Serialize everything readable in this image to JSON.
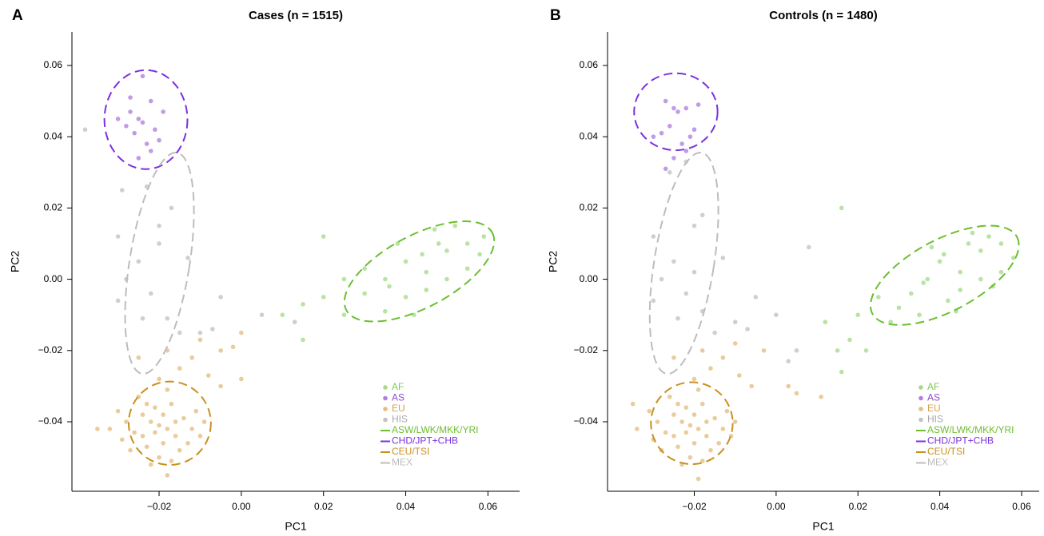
{
  "chart_data": [
    {
      "type": "scatter",
      "panel_label": "A",
      "title": "Cases (n = 1515)",
      "x_label": "PC1",
      "y_label": "PC2",
      "xlim": [
        -0.0412,
        0.0677
      ],
      "ylim": [
        -0.0595,
        0.0694
      ],
      "xticks": [
        {
          "value": -0.02,
          "label": "−0.02"
        },
        {
          "value": 0,
          "label": "0.00"
        },
        0.02,
        0.04,
        0.06
      ],
      "yticks": [
        {
          "value": -0.04,
          "label": "−0.04"
        },
        {
          "value": -0.02,
          "label": "−0.02"
        },
        {
          "value": 0,
          "label": "0.00"
        },
        0.02,
        0.04,
        0.06
      ],
      "legend": "lower right",
      "series": [
        {
          "name": "AF",
          "color": "#7dcc55",
          "x": [
            0.02,
            0.01,
            0.015,
            0.02,
            0.025,
            0.03,
            0.035,
            0.04,
            0.045,
            0.05,
            0.055,
            0.058,
            0.047,
            0.052,
            0.04,
            0.035,
            0.045,
            0.03,
            0.038,
            0.042,
            0.05,
            0.055,
            0.025,
            0.015,
            0.048,
            0.036,
            0.044,
            0.059
          ],
          "y": [
            0.012,
            -0.01,
            -0.007,
            -0.005,
            -0.01,
            -0.004,
            0.0,
            0.005,
            0.002,
            0.008,
            0.01,
            0.007,
            0.014,
            0.015,
            -0.005,
            -0.009,
            -0.003,
            0.003,
            0.01,
            -0.01,
            0.0,
            0.003,
            0.0,
            -0.017,
            0.01,
            -0.002,
            0.007,
            0.012
          ]
        },
        {
          "name": "AS",
          "color": "#8e48cf",
          "x": [
            -0.025,
            -0.027,
            -0.022,
            -0.024,
            -0.021,
            -0.026,
            -0.028,
            -0.023,
            -0.02,
            -0.025,
            -0.03,
            -0.019,
            -0.027,
            -0.022,
            -0.024
          ],
          "y": [
            0.045,
            0.047,
            0.05,
            0.057,
            0.042,
            0.041,
            0.043,
            0.038,
            0.039,
            0.034,
            0.045,
            0.047,
            0.051,
            0.036,
            0.044
          ]
        },
        {
          "name": "EU",
          "color": "#d9a14a",
          "x": [
            -0.02,
            -0.022,
            -0.018,
            -0.024,
            -0.016,
            -0.021,
            -0.019,
            -0.026,
            -0.014,
            -0.023,
            -0.017,
            -0.028,
            -0.012,
            -0.02,
            -0.025,
            -0.015,
            -0.029,
            -0.011,
            -0.022,
            -0.018,
            -0.03,
            -0.013,
            -0.024,
            -0.016,
            -0.021,
            -0.019,
            -0.027,
            -0.01,
            -0.023,
            -0.017,
            -0.032,
            -0.009,
            -0.02,
            -0.015,
            -0.012,
            -0.008,
            -0.005,
            -0.002,
            0.0,
            -0.005,
            -0.025,
            -0.018,
            -0.01,
            -0.035,
            -0.018,
            0.0
          ],
          "y": [
            -0.041,
            -0.04,
            -0.042,
            -0.038,
            -0.044,
            -0.036,
            -0.046,
            -0.043,
            -0.039,
            -0.047,
            -0.035,
            -0.04,
            -0.042,
            -0.05,
            -0.033,
            -0.048,
            -0.045,
            -0.037,
            -0.052,
            -0.031,
            -0.037,
            -0.046,
            -0.044,
            -0.04,
            -0.043,
            -0.038,
            -0.048,
            -0.044,
            -0.035,
            -0.051,
            -0.042,
            -0.04,
            -0.028,
            -0.025,
            -0.022,
            -0.027,
            -0.03,
            -0.019,
            -0.015,
            -0.02,
            -0.022,
            -0.02,
            -0.017,
            -0.042,
            -0.055,
            -0.028
          ]
        },
        {
          "name": "HIS",
          "color": "#a8a8a8",
          "x": [
            -0.038,
            -0.029,
            -0.023,
            -0.017,
            -0.03,
            -0.025,
            -0.02,
            -0.028,
            -0.022,
            -0.03,
            -0.024,
            -0.018,
            -0.013,
            -0.015,
            -0.01,
            -0.005,
            0.005,
            -0.007,
            0.013,
            -0.02
          ],
          "y": [
            0.042,
            0.025,
            0.026,
            0.02,
            0.012,
            0.005,
            0.01,
            0.0,
            -0.004,
            -0.006,
            -0.011,
            -0.011,
            0.006,
            -0.015,
            -0.015,
            -0.005,
            -0.01,
            -0.014,
            -0.012,
            0.015
          ]
        }
      ],
      "ellipses": [
        {
          "name": "ASW/LWK/MKK/YRI",
          "color": "#6bbf2f",
          "cx": 0.0433,
          "cy": 0.0022,
          "rx": 0.0201,
          "ry": 0.0101,
          "angle": -28
        },
        {
          "name": "CHD/JPT+CHB",
          "color": "#7b30df",
          "cx": -0.0232,
          "cy": 0.0448,
          "rx": 0.0101,
          "ry": 0.0139,
          "angle": 0
        },
        {
          "name": "CEU/TSI",
          "color": "#c9901f",
          "cx": -0.0174,
          "cy": -0.0404,
          "rx": 0.01,
          "ry": 0.0117,
          "angle": 0
        },
        {
          "name": "MEX",
          "color": "#bdbdbd",
          "cx": -0.0199,
          "cy": 0.0045,
          "rx": 0.0073,
          "ry": 0.0314,
          "angle": 9
        }
      ]
    },
    {
      "type": "scatter",
      "panel_label": "B",
      "title": "Controls (n = 1480)",
      "x_label": "PC1",
      "y_label": "PC2",
      "xlim": [
        -0.0412,
        0.0643
      ],
      "ylim": [
        -0.0595,
        0.0694
      ],
      "xticks": [
        {
          "value": -0.02,
          "label": "−0.02"
        },
        {
          "value": 0,
          "label": "0.00"
        },
        0.02,
        0.04,
        0.06
      ],
      "yticks": [
        {
          "value": -0.04,
          "label": "−0.04"
        },
        {
          "value": -0.02,
          "label": "−0.02"
        },
        {
          "value": 0,
          "label": "0.00"
        },
        0.02,
        0.04,
        0.06
      ],
      "legend": "lower right",
      "series": [
        {
          "name": "AF",
          "color": "#7dcc55",
          "x": [
            0.016,
            0.012,
            0.015,
            0.02,
            0.022,
            0.025,
            0.03,
            0.033,
            0.037,
            0.04,
            0.045,
            0.05,
            0.055,
            0.058,
            0.048,
            0.052,
            0.042,
            0.035,
            0.045,
            0.028,
            0.038,
            0.044,
            0.05,
            0.055,
            0.016,
            0.018,
            0.047,
            0.036,
            0.041,
            0.053
          ],
          "y": [
            0.02,
            -0.012,
            -0.02,
            -0.01,
            -0.02,
            -0.005,
            -0.008,
            -0.004,
            0.0,
            0.005,
            0.002,
            0.008,
            0.01,
            0.006,
            0.013,
            0.012,
            -0.006,
            -0.01,
            -0.003,
            -0.012,
            0.009,
            -0.009,
            0.0,
            0.002,
            -0.026,
            -0.017,
            0.01,
            -0.001,
            0.007,
            -0.002
          ]
        },
        {
          "name": "AS",
          "color": "#8e48cf",
          "x": [
            -0.025,
            -0.027,
            -0.022,
            -0.024,
            -0.021,
            -0.026,
            -0.028,
            -0.023,
            -0.02,
            -0.025,
            -0.03,
            -0.019,
            -0.027,
            -0.022
          ],
          "y": [
            0.048,
            0.05,
            0.048,
            0.047,
            0.04,
            0.043,
            0.041,
            0.038,
            0.042,
            0.034,
            0.04,
            0.049,
            0.031,
            0.036
          ]
        },
        {
          "name": "EU",
          "color": "#d9a14a",
          "x": [
            -0.021,
            -0.023,
            -0.019,
            -0.025,
            -0.017,
            -0.022,
            -0.02,
            -0.027,
            -0.015,
            -0.024,
            -0.018,
            -0.029,
            -0.013,
            -0.021,
            -0.026,
            -0.016,
            -0.03,
            -0.012,
            -0.023,
            -0.019,
            -0.031,
            -0.014,
            -0.025,
            -0.017,
            -0.022,
            -0.02,
            -0.028,
            -0.011,
            -0.024,
            -0.018,
            -0.034,
            -0.01,
            -0.02,
            -0.016,
            -0.013,
            -0.009,
            -0.006,
            -0.003,
            0.005,
            0.011,
            -0.025,
            -0.018,
            -0.01,
            -0.035,
            -0.019,
            0.003
          ],
          "y": [
            -0.041,
            -0.04,
            -0.042,
            -0.038,
            -0.044,
            -0.036,
            -0.046,
            -0.043,
            -0.039,
            -0.047,
            -0.035,
            -0.04,
            -0.042,
            -0.05,
            -0.033,
            -0.048,
            -0.045,
            -0.037,
            -0.052,
            -0.031,
            -0.037,
            -0.046,
            -0.044,
            -0.04,
            -0.043,
            -0.038,
            -0.048,
            -0.044,
            -0.035,
            -0.051,
            -0.042,
            -0.04,
            -0.028,
            -0.025,
            -0.022,
            -0.027,
            -0.03,
            -0.02,
            -0.032,
            -0.033,
            -0.022,
            -0.02,
            -0.018,
            -0.035,
            -0.056,
            -0.03
          ]
        },
        {
          "name": "HIS",
          "color": "#a8a8a8",
          "x": [
            -0.026,
            -0.022,
            -0.018,
            -0.03,
            -0.025,
            -0.02,
            -0.028,
            -0.022,
            -0.03,
            -0.024,
            -0.018,
            -0.013,
            -0.015,
            -0.01,
            -0.005,
            0.0,
            0.005,
            -0.007,
            0.008,
            -0.02,
            0.003
          ],
          "y": [
            0.03,
            0.033,
            0.018,
            0.012,
            0.005,
            0.015,
            0.0,
            -0.004,
            -0.006,
            -0.011,
            -0.009,
            0.006,
            -0.015,
            -0.012,
            -0.005,
            -0.01,
            -0.02,
            -0.014,
            0.009,
            0.002,
            -0.023
          ]
        }
      ],
      "ellipses": [
        {
          "name": "ASW/LWK/MKK/YRI",
          "color": "#6bbf2f",
          "cx": 0.0412,
          "cy": 0.0011,
          "rx": 0.02,
          "ry": 0.01,
          "angle": -28
        },
        {
          "name": "CHD/JPT+CHB",
          "color": "#7b30df",
          "cx": -0.0245,
          "cy": 0.047,
          "rx": 0.0102,
          "ry": 0.0108,
          "angle": 0
        },
        {
          "name": "CEU/TSI",
          "color": "#c9901f",
          "cx": -0.0206,
          "cy": -0.0404,
          "rx": 0.01,
          "ry": 0.0115,
          "angle": 0
        },
        {
          "name": "MEX",
          "color": "#bdbdbd",
          "cx": -0.0225,
          "cy": 0.0045,
          "rx": 0.0073,
          "ry": 0.0314,
          "angle": 9
        }
      ]
    }
  ]
}
